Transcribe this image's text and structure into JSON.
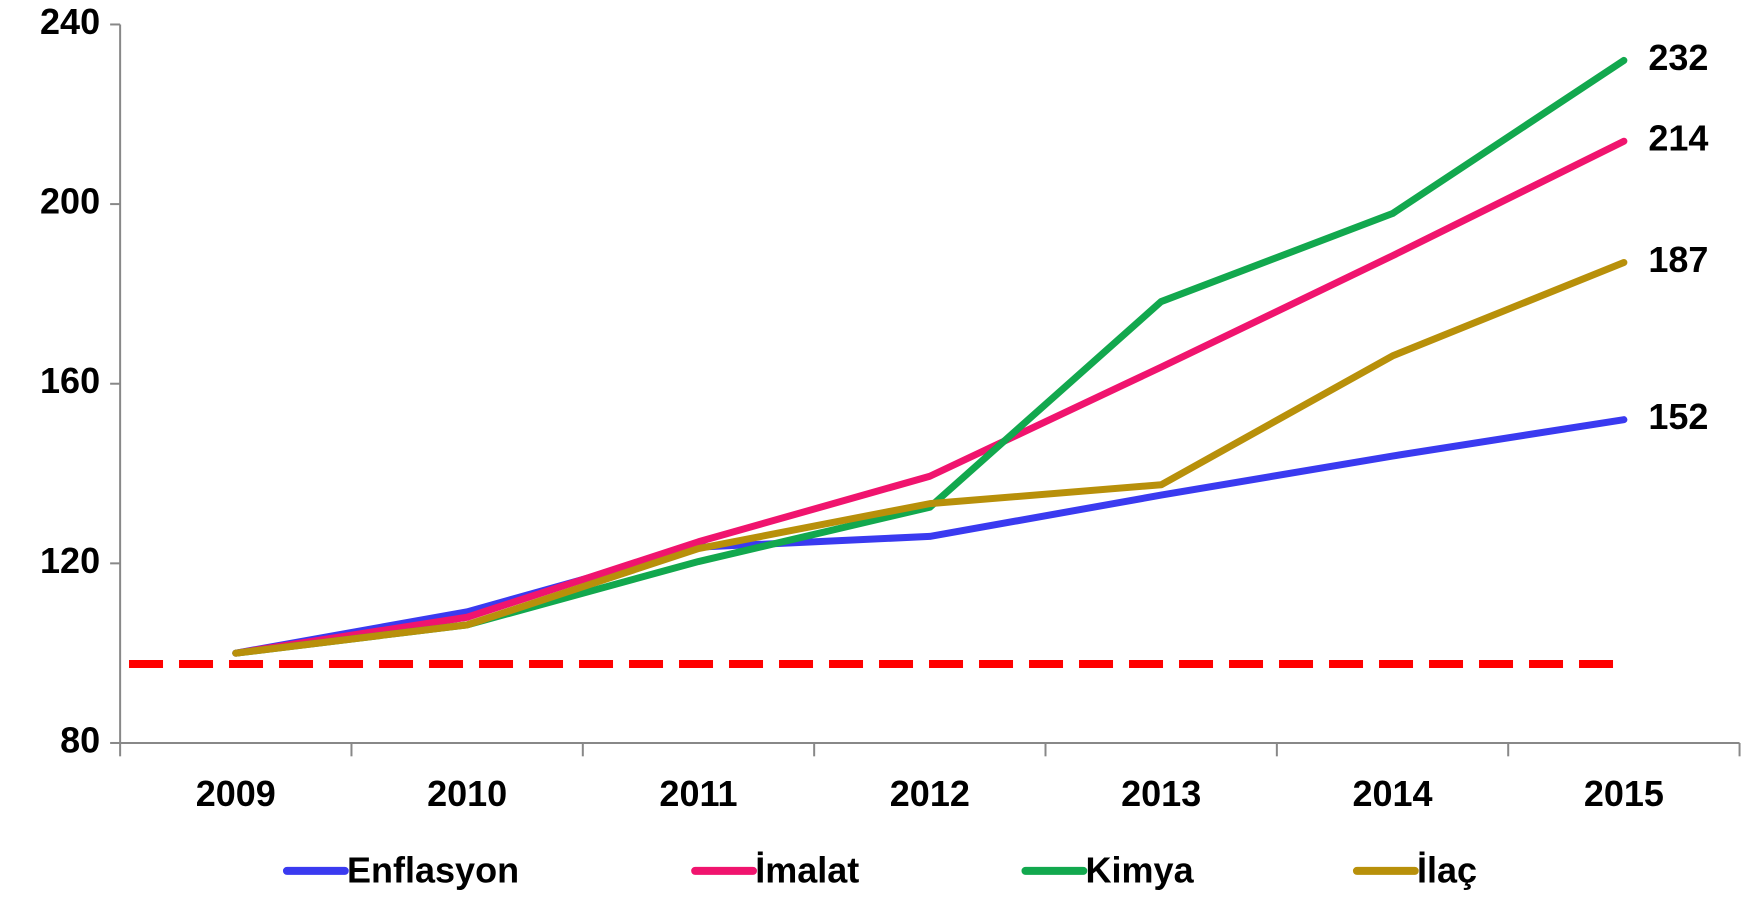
{
  "chart_data": {
    "type": "line",
    "categories": [
      "2009",
      "2010",
      "2011",
      "2012",
      "2013",
      "2014",
      "2015"
    ],
    "series": [
      {
        "name": "Enflasyon",
        "color": "#3a3af0",
        "values": [
          100,
          109.2,
          123.6,
          126,
          135.2,
          143.9,
          152
        ]
      },
      {
        "name": "İmalat",
        "color": "#f0146e",
        "values": [
          100,
          108,
          124.8,
          139.4,
          163.7,
          188.5,
          214
        ]
      },
      {
        "name": "Kimya",
        "color": "#12a84e",
        "values": [
          100,
          106.3,
          120.4,
          132.5,
          178.3,
          197.9,
          232
        ]
      },
      {
        "name": "İlaç",
        "color": "#b8900a",
        "values": [
          100,
          106.3,
          123.3,
          133.3,
          137.5,
          166.2,
          187
        ]
      }
    ],
    "reference_line": {
      "value": 97.6,
      "color": "#ff0000"
    },
    "ylim": [
      80,
      240
    ],
    "yticks": [
      80,
      120,
      160,
      200,
      240
    ],
    "legend": "bottom"
  }
}
